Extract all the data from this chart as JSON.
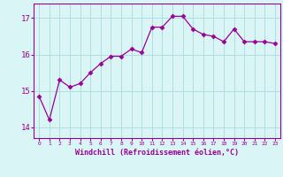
{
  "x": [
    0,
    1,
    2,
    3,
    4,
    5,
    6,
    7,
    8,
    9,
    10,
    11,
    12,
    13,
    14,
    15,
    16,
    17,
    18,
    19,
    20,
    21,
    22,
    23
  ],
  "y": [
    14.85,
    14.2,
    15.3,
    15.1,
    15.2,
    15.5,
    15.75,
    15.95,
    15.95,
    16.15,
    16.05,
    16.75,
    16.75,
    17.05,
    17.05,
    16.7,
    16.55,
    16.5,
    16.35,
    16.7,
    16.35,
    16.35,
    16.35,
    16.3
  ],
  "line_color": "#990099",
  "marker": "D",
  "marker_size": 2.5,
  "bg_color": "#d9f5f5",
  "grid_color": "#b0dede",
  "xlabel": "Windchill (Refroidissement éolien,°C)",
  "xlabel_color": "#990099",
  "tick_color": "#990099",
  "yticks": [
    14,
    15,
    16,
    17
  ],
  "ylim": [
    13.7,
    17.4
  ],
  "xlim": [
    -0.5,
    23.5
  ],
  "xticks": [
    0,
    1,
    2,
    3,
    4,
    5,
    6,
    7,
    8,
    9,
    10,
    11,
    12,
    13,
    14,
    15,
    16,
    17,
    18,
    19,
    20,
    21,
    22,
    23
  ]
}
